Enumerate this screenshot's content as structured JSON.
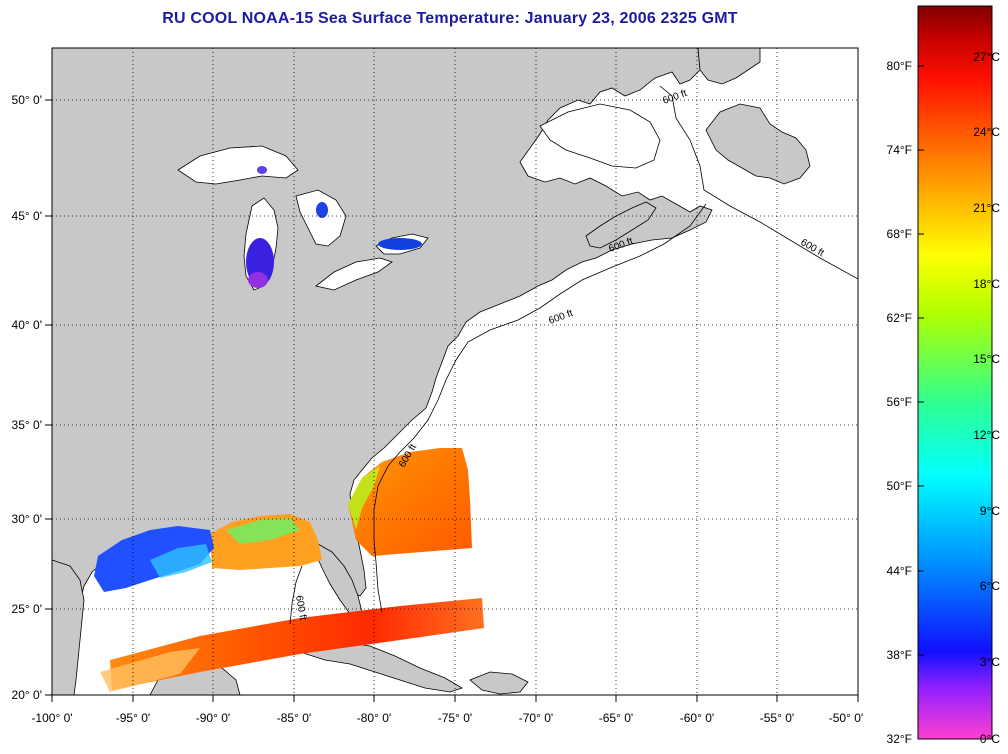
{
  "title": "RU COOL  NOAA-15  Sea Surface Temperature:  January 23, 2006 2325 GMT",
  "map": {
    "lon_range": [
      -100,
      -50
    ],
    "lat_range": [
      20,
      52.5
    ],
    "lon_ticks": [
      "-100° 0'",
      "-95° 0'",
      "-90° 0'",
      "-85° 0'",
      "-80° 0'",
      "-75° 0'",
      "-70° 0'",
      "-65° 0'",
      "-60° 0'",
      "-55° 0'",
      "-50° 0'"
    ],
    "lat_ticks": [
      "20° 0'",
      "25° 0'",
      "30° 0'",
      "35° 0'",
      "40° 0'",
      "45° 0'",
      "50° 0'"
    ],
    "isobath_label": "600 ft",
    "land_color": "#c8c8c8",
    "ocean_color": "#ffffff"
  },
  "colorbar": {
    "fahrenheit_labels": [
      "80°F",
      "74°F",
      "68°F",
      "62°F",
      "56°F",
      "50°F",
      "44°F",
      "38°F",
      "32°F"
    ],
    "celsius_labels": [
      "27°C",
      "24°C",
      "21°C",
      "18°C",
      "15°C",
      "12°C",
      "9°C",
      "6°C",
      "3°C",
      "0°C"
    ],
    "colors": [
      "#ff3fd0",
      "#8a2be2",
      "#0000ff",
      "#00a0ff",
      "#00ffff",
      "#40ff80",
      "#a0ff00",
      "#ffff00",
      "#ffb000",
      "#ff6000",
      "#ff0000",
      "#c00000",
      "#800000"
    ]
  }
}
